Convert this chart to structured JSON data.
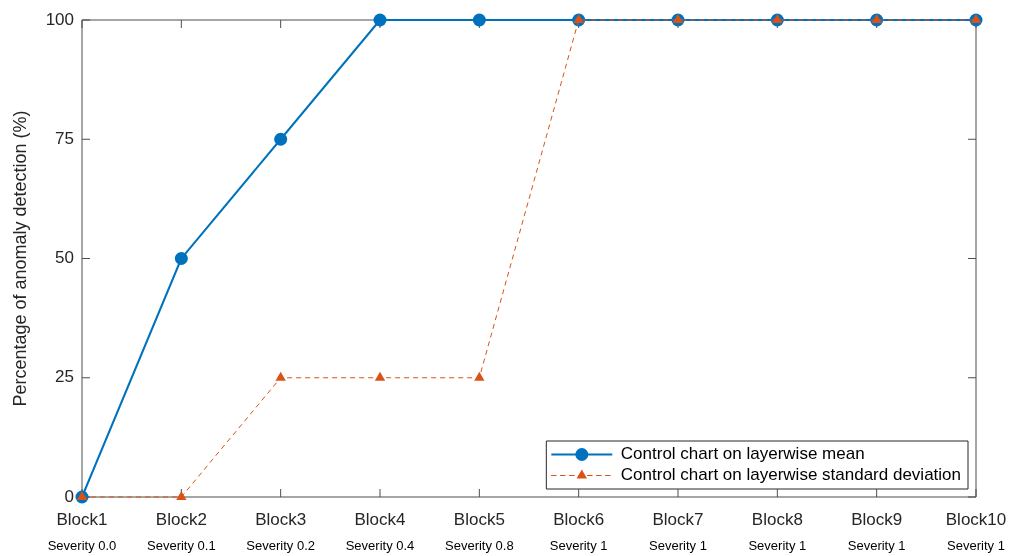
{
  "chart_data": {
    "type": "line",
    "ylabel": "Percentage of anomaly detection (%)",
    "categories": [
      "Block1\nSeverity 0.0",
      "Block2\nSeverity 0.1",
      "Block3\nSeverity 0.2",
      "Block4\nSeverity 0.4",
      "Block5\nSeverity 0.8",
      "Block6\nSeverity 1",
      "Block7\nSeverity 1",
      "Block8\nSeverity 1",
      "Block9\nSeverity 1",
      "Block10\nSeverity 1"
    ],
    "series": [
      {
        "name": "Control chart on layerwise mean",
        "color": "#0072bd",
        "marker": "circle",
        "line_style": "solid",
        "values": [
          0,
          50,
          75,
          100,
          100,
          100,
          100,
          100,
          100,
          100
        ]
      },
      {
        "name": "Control chart on layerwise standard deviation",
        "color": "#d95319",
        "marker": "triangle",
        "line_style": "dashed",
        "values": [
          0,
          0,
          25,
          25,
          25,
          100,
          100,
          100,
          100,
          100
        ]
      }
    ],
    "ylim": [
      0,
      100
    ],
    "yticks": [
      0,
      25,
      50,
      75,
      100
    ],
    "legend": "bottom right"
  }
}
